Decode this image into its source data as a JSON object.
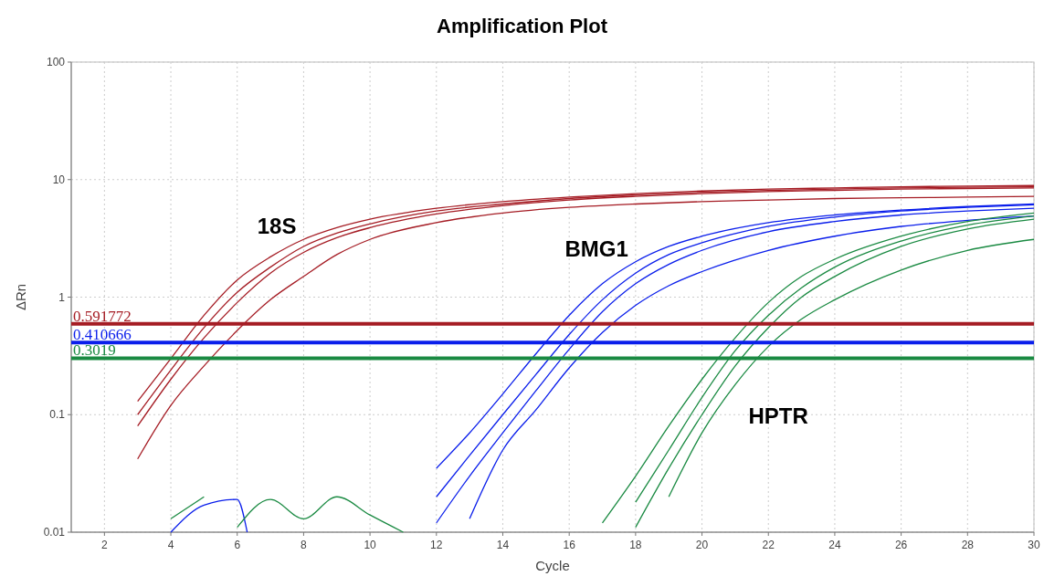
{
  "chart_data": {
    "type": "line",
    "title": "Amplification Plot",
    "xlabel": "Cycle",
    "ylabel": "ΔRn",
    "log": "y",
    "grid": true,
    "marker": "none",
    "line_style": "solid",
    "xlim": [
      1,
      30
    ],
    "xticks": [
      2,
      4,
      6,
      8,
      10,
      12,
      14,
      16,
      18,
      20,
      22,
      24,
      26,
      28,
      30
    ],
    "ylim": [
      0.01,
      100
    ],
    "yticks": [
      0.01,
      0.1,
      1,
      10,
      100
    ],
    "series": [
      {
        "name": "18S",
        "color": "#a51c24",
        "x": [
          3,
          4,
          5,
          6,
          7,
          8,
          9,
          10,
          12,
          14,
          16,
          18,
          20,
          22,
          24,
          26,
          28,
          30
        ],
        "values": [
          0.13,
          0.3,
          0.7,
          1.4,
          2.2,
          3.1,
          3.9,
          4.6,
          5.7,
          6.5,
          7.1,
          7.6,
          8.0,
          8.3,
          8.5,
          8.7,
          8.8,
          8.9
        ]
      },
      {
        "color": "#a51c24",
        "x": [
          3,
          4,
          5,
          6,
          7,
          8,
          9,
          10,
          12,
          14,
          16,
          18,
          20,
          22,
          24,
          26,
          28,
          30
        ],
        "values": [
          0.1,
          0.24,
          0.55,
          1.1,
          1.8,
          2.7,
          3.5,
          4.2,
          5.4,
          6.2,
          6.9,
          7.4,
          7.8,
          8.1,
          8.3,
          8.5,
          8.6,
          8.7
        ]
      },
      {
        "color": "#a51c24",
        "x": [
          3,
          4,
          5,
          6,
          7,
          8,
          9,
          10,
          12,
          14,
          16,
          18,
          20,
          22,
          24,
          26,
          28,
          30
        ],
        "values": [
          0.08,
          0.2,
          0.45,
          0.9,
          1.6,
          2.4,
          3.2,
          3.9,
          5.1,
          6.0,
          6.7,
          7.2,
          7.6,
          7.9,
          8.1,
          8.3,
          8.4,
          8.5
        ]
      },
      {
        "color": "#a51c24",
        "x": [
          3,
          4,
          5,
          6,
          7,
          8,
          9,
          10,
          12,
          14,
          16,
          18,
          20,
          22,
          24,
          26,
          28,
          30
        ],
        "values": [
          0.042,
          0.12,
          0.26,
          0.52,
          0.95,
          1.5,
          2.3,
          3.1,
          4.3,
          5.2,
          5.8,
          6.2,
          6.5,
          6.7,
          6.9,
          7.0,
          7.1,
          7.2
        ]
      },
      {
        "name": "BMG1",
        "color": "#0a1eeb",
        "x": [
          12,
          13,
          14,
          15,
          16,
          17,
          18,
          19,
          20,
          22,
          24,
          26,
          28,
          30
        ],
        "values": [
          0.035,
          0.07,
          0.15,
          0.33,
          0.7,
          1.3,
          2.0,
          2.7,
          3.3,
          4.3,
          5.0,
          5.5,
          5.9,
          6.2
        ]
      },
      {
        "color": "#0a1eeb",
        "x": [
          12,
          13,
          14,
          15,
          16,
          17,
          18,
          19,
          20,
          22,
          24,
          26,
          28,
          30
        ],
        "values": [
          0.02,
          0.045,
          0.1,
          0.22,
          0.48,
          0.95,
          1.6,
          2.3,
          2.9,
          4.0,
          4.8,
          5.4,
          5.8,
          6.1
        ]
      },
      {
        "color": "#0a1eeb",
        "x": [
          12,
          13,
          14,
          15,
          16,
          17,
          18,
          19,
          20,
          22,
          24,
          26,
          28,
          30
        ],
        "values": [
          0.012,
          0.03,
          0.07,
          0.16,
          0.36,
          0.75,
          1.3,
          1.9,
          2.5,
          3.6,
          4.4,
          5.0,
          5.4,
          5.7
        ]
      },
      {
        "color": "#0a1eeb",
        "x": [
          13,
          14,
          15,
          16,
          17,
          18,
          19,
          20,
          22,
          24,
          26,
          28,
          30
        ],
        "values": [
          0.013,
          0.05,
          0.11,
          0.25,
          0.5,
          0.85,
          1.25,
          1.65,
          2.5,
          3.3,
          4.0,
          4.5,
          4.9
        ]
      },
      {
        "color": "#0a1eeb",
        "x": [
          4,
          5,
          6,
          6.3
        ],
        "values": [
          0.01,
          0.017,
          0.019,
          0.01
        ]
      },
      {
        "color": "#1a8a42",
        "x": [
          17,
          18,
          19,
          20,
          21,
          22,
          23,
          24,
          26,
          28,
          30
        ],
        "values": [
          0.012,
          0.03,
          0.08,
          0.2,
          0.45,
          0.9,
          1.5,
          2.1,
          3.3,
          4.4,
          5.2
        ]
      },
      {
        "color": "#1a8a42",
        "x": [
          18,
          19,
          20,
          21,
          22,
          23,
          24,
          26,
          28,
          30
        ],
        "values": [
          0.018,
          0.05,
          0.14,
          0.35,
          0.7,
          1.2,
          1.8,
          3.0,
          4.1,
          4.9
        ]
      },
      {
        "color": "#1a8a42",
        "x": [
          18,
          19,
          20,
          21,
          22,
          23,
          24,
          26,
          28,
          30
        ],
        "values": [
          0.011,
          0.035,
          0.1,
          0.26,
          0.55,
          1.0,
          1.5,
          2.7,
          3.8,
          4.6
        ]
      },
      {
        "name": "HPTR",
        "color": "#1a8a42",
        "x": [
          19,
          20,
          21,
          22,
          23,
          24,
          26,
          28,
          30
        ],
        "values": [
          0.02,
          0.07,
          0.18,
          0.38,
          0.65,
          0.95,
          1.7,
          2.5,
          3.1
        ]
      },
      {
        "color": "#1a8a42",
        "x": [
          4,
          5
        ],
        "values": [
          0.013,
          0.02
        ]
      },
      {
        "color": "#1a8a42",
        "x": [
          6,
          7,
          8,
          9,
          10,
          11
        ],
        "values": [
          0.011,
          0.019,
          0.013,
          0.02,
          0.014,
          0.01
        ]
      }
    ],
    "ref_lines": [
      {
        "axis": "y",
        "value": 0.591772,
        "label": "0.591772",
        "color": "#a51c24"
      },
      {
        "axis": "y",
        "value": 0.410666,
        "label": "0.410666",
        "color": "#0a1eeb"
      },
      {
        "axis": "y",
        "value": 0.3019,
        "label": "0.3019",
        "color": "#1a8a42"
      }
    ]
  }
}
